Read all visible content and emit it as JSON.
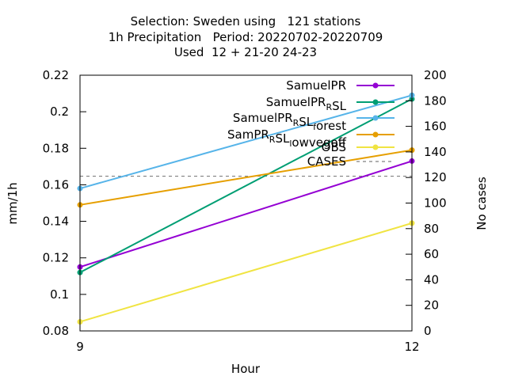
{
  "chart_data": {
    "type": "line",
    "title_lines": [
      "Selection: Sweden using   121 stations",
      "1h Precipitation   Period: 20220702-20220709",
      "Used  12 + 21-20 24-23"
    ],
    "xlabel": "Hour",
    "ylabel": "mm/1h",
    "y2label": "No cases",
    "x": [
      9,
      12
    ],
    "xlim": [
      9,
      12
    ],
    "ylim": [
      0.08,
      0.22
    ],
    "y2lim": [
      0,
      200
    ],
    "xticks": [
      9,
      12
    ],
    "yticks": [
      0.08,
      0.1,
      0.12,
      0.14,
      0.16,
      0.18,
      0.2,
      0.22
    ],
    "ytick_labels": [
      "0.08",
      "0.1",
      "0.12",
      "0.14",
      "0.16",
      "0.18",
      "0.2",
      "0.22"
    ],
    "y2ticks": [
      0,
      20,
      40,
      60,
      80,
      100,
      120,
      140,
      160,
      180,
      200
    ],
    "grid": false,
    "legend_position": "top-right",
    "series": [
      {
        "name": "SamuelPR",
        "name_parts": [
          [
            "SamuelPR",
            "n"
          ]
        ],
        "color": "#9400d3",
        "values": [
          0.115,
          0.173
        ]
      },
      {
        "name": "SamuelPR_RSL",
        "name_parts": [
          [
            "SamuelPR",
            "n"
          ],
          [
            "R",
            "sub"
          ],
          [
            "SL",
            "n"
          ]
        ],
        "color": "#009e73",
        "values": [
          0.112,
          0.207
        ]
      },
      {
        "name": "SamuelPR_RSL_forest",
        "name_parts": [
          [
            "SamuelPR",
            "n"
          ],
          [
            "R",
            "sub"
          ],
          [
            "SL",
            "n"
          ],
          [
            "f",
            "sub"
          ],
          [
            "orest",
            "n"
          ]
        ],
        "color": "#56b4e9",
        "values": [
          0.158,
          0.209
        ]
      },
      {
        "name": "SamPR_RSL_lowvegoff",
        "name_parts": [
          [
            "SamPR",
            "n"
          ],
          [
            "R",
            "sub"
          ],
          [
            "SL",
            "n"
          ],
          [
            "l",
            "sub"
          ],
          [
            "owvegoff",
            "n"
          ]
        ],
        "color": "#e69f00",
        "values": [
          0.149,
          0.179
        ]
      },
      {
        "name": "OBS",
        "name_parts": [
          [
            "OBS",
            "n"
          ]
        ],
        "color": "#f0e442",
        "values": [
          0.085,
          0.139
        ]
      }
    ],
    "cases": {
      "name": "CASES",
      "axis": "y2",
      "values": [
        121,
        121
      ]
    }
  }
}
